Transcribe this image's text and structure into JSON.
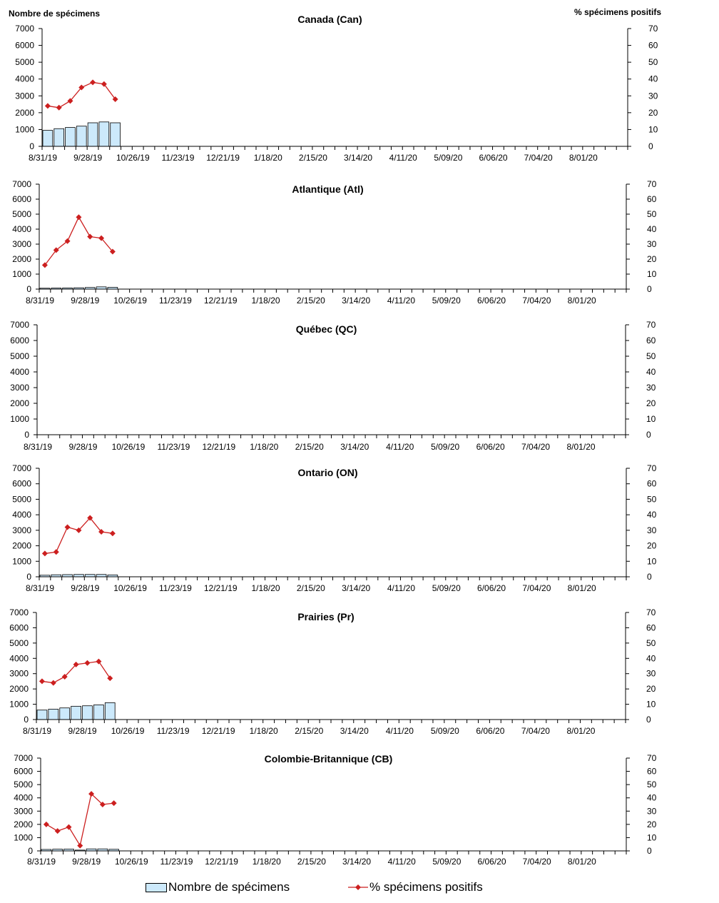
{
  "axis_titles": {
    "left": "Nombre de spécimens",
    "right": "% spécimens positifs"
  },
  "legend": {
    "bars": "Nombre de spécimens",
    "line": "% spécimens positifs"
  },
  "colors": {
    "bar_fill": "#cce9fb",
    "bar_stroke": "#000000",
    "line": "#cc1f1f"
  },
  "chart_data": [
    {
      "type": "bar+line",
      "title": "Canada (Can)",
      "x_tick_labels": [
        "8/31/19",
        "9/28/19",
        "10/26/19",
        "11/23/19",
        "12/21/19",
        "1/18/20",
        "2/15/20",
        "3/14/20",
        "4/11/20",
        "5/09/20",
        "6/06/20",
        "7/04/20",
        "8/01/20"
      ],
      "ylim_left": [
        0,
        7000
      ],
      "yticks_left": [
        0,
        1000,
        2000,
        3000,
        4000,
        5000,
        6000,
        7000
      ],
      "ylim_right": [
        0,
        70
      ],
      "yticks_right": [
        0,
        10,
        20,
        30,
        40,
        50,
        60,
        70
      ],
      "n_weeks": 52,
      "series": [
        {
          "name": "Nombre de spécimens",
          "kind": "bar",
          "values": [
            950,
            1050,
            1120,
            1200,
            1400,
            1450,
            1400
          ]
        },
        {
          "name": "% spécimens positifs",
          "kind": "line",
          "values": [
            24,
            23,
            27,
            35,
            38,
            37,
            28
          ]
        }
      ]
    },
    {
      "type": "bar+line",
      "title": "Atlantique (Atl)",
      "x_tick_labels": [
        "8/31/19",
        "9/28/19",
        "10/26/19",
        "11/23/19",
        "12/21/19",
        "1/18/20",
        "2/15/20",
        "3/14/20",
        "4/11/20",
        "5/09/20",
        "6/06/20",
        "7/04/20",
        "8/01/20"
      ],
      "ylim_left": [
        0,
        7000
      ],
      "yticks_left": [
        0,
        1000,
        2000,
        3000,
        4000,
        5000,
        6000,
        7000
      ],
      "ylim_right": [
        0,
        70
      ],
      "yticks_right": [
        0,
        10,
        20,
        30,
        40,
        50,
        60,
        70
      ],
      "n_weeks": 52,
      "series": [
        {
          "name": "Nombre de spécimens",
          "kind": "bar",
          "values": [
            60,
            70,
            80,
            90,
            110,
            150,
            120
          ]
        },
        {
          "name": "% spécimens positifs",
          "kind": "line",
          "values": [
            16,
            26,
            32,
            48,
            35,
            34,
            25
          ]
        }
      ]
    },
    {
      "type": "bar+line",
      "title": "Québec (QC)",
      "x_tick_labels": [
        "8/31/19",
        "9/28/19",
        "10/26/19",
        "11/23/19",
        "12/21/19",
        "1/18/20",
        "2/15/20",
        "3/14/20",
        "4/11/20",
        "5/09/20",
        "6/06/20",
        "7/04/20",
        "8/01/20"
      ],
      "ylim_left": [
        0,
        7000
      ],
      "yticks_left": [
        0,
        1000,
        2000,
        3000,
        4000,
        5000,
        6000,
        7000
      ],
      "ylim_right": [
        0,
        70
      ],
      "yticks_right": [
        0,
        10,
        20,
        30,
        40,
        50,
        60,
        70
      ],
      "n_weeks": 52,
      "series": [
        {
          "name": "Nombre de spécimens",
          "kind": "bar",
          "values": []
        },
        {
          "name": "% spécimens positifs",
          "kind": "line",
          "values": []
        }
      ]
    },
    {
      "type": "bar+line",
      "title": "Ontario (ON)",
      "x_tick_labels": [
        "8/31/19",
        "9/28/19",
        "10/26/19",
        "11/23/19",
        "12/21/19",
        "1/18/20",
        "2/15/20",
        "3/14/20",
        "4/11/20",
        "5/09/20",
        "6/06/20",
        "7/04/20",
        "8/01/20"
      ],
      "ylim_left": [
        0,
        7000
      ],
      "yticks_left": [
        0,
        1000,
        2000,
        3000,
        4000,
        5000,
        6000,
        7000
      ],
      "ylim_right": [
        0,
        70
      ],
      "yticks_right": [
        0,
        10,
        20,
        30,
        40,
        50,
        60,
        70
      ],
      "n_weeks": 52,
      "series": [
        {
          "name": "Nombre de spécimens",
          "kind": "bar",
          "values": [
            100,
            130,
            140,
            150,
            150,
            150,
            120
          ]
        },
        {
          "name": "% spécimens positifs",
          "kind": "line",
          "values": [
            15,
            16,
            32,
            30,
            38,
            29,
            28
          ]
        }
      ]
    },
    {
      "type": "bar+line",
      "title": "Prairies (Pr)",
      "x_tick_labels": [
        "8/31/19",
        "9/28/19",
        "10/26/19",
        "11/23/19",
        "12/21/19",
        "1/18/20",
        "2/15/20",
        "3/14/20",
        "4/11/20",
        "5/09/20",
        "6/06/20",
        "7/04/20",
        "8/01/20"
      ],
      "ylim_left": [
        0,
        7000
      ],
      "yticks_left": [
        0,
        1000,
        2000,
        3000,
        4000,
        5000,
        6000,
        7000
      ],
      "ylim_right": [
        0,
        70
      ],
      "yticks_right": [
        0,
        10,
        20,
        30,
        40,
        50,
        60,
        70
      ],
      "n_weeks": 52,
      "series": [
        {
          "name": "Nombre de spécimens",
          "kind": "bar",
          "values": [
            620,
            680,
            760,
            870,
            900,
            960,
            1100
          ]
        },
        {
          "name": "% spécimens positifs",
          "kind": "line",
          "values": [
            25,
            24,
            28,
            36,
            37,
            38,
            27
          ]
        }
      ]
    },
    {
      "type": "bar+line",
      "title": "Colombie-Britannique (CB)",
      "x_tick_labels": [
        "8/31/19",
        "9/28/19",
        "10/26/19",
        "11/23/19",
        "12/21/19",
        "1/18/20",
        "2/15/20",
        "3/14/20",
        "4/11/20",
        "5/09/20",
        "6/06/20",
        "7/04/20",
        "8/01/20"
      ],
      "ylim_left": [
        0,
        7000
      ],
      "yticks_left": [
        0,
        1000,
        2000,
        3000,
        4000,
        5000,
        6000,
        7000
      ],
      "ylim_right": [
        0,
        70
      ],
      "yticks_right": [
        0,
        10,
        20,
        30,
        40,
        50,
        60,
        70
      ],
      "n_weeks": 52,
      "series": [
        {
          "name": "Nombre de spécimens",
          "kind": "bar",
          "values": [
            110,
            130,
            140,
            60,
            150,
            150,
            120
          ]
        },
        {
          "name": "% spécimens positifs",
          "kind": "line",
          "values": [
            20,
            15,
            18,
            4,
            43,
            35,
            36
          ]
        }
      ]
    }
  ]
}
